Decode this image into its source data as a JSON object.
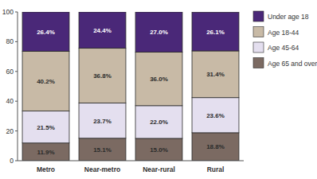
{
  "chart_data": {
    "type": "bar",
    "stacked": true,
    "data_labels": true,
    "legend": "right",
    "grid": false,
    "categories": [
      "Metro",
      "Near-metro",
      "Near-rural",
      "Rural"
    ],
    "ylim": [
      0,
      100
    ],
    "yticks": [
      0,
      20,
      40,
      60,
      80,
      100
    ],
    "series": [
      {
        "name": "Under age 18",
        "color": "#4a2878",
        "values": [
          26.4,
          24.4,
          27.0,
          26.1
        ],
        "value_labels": [
          "26.4%",
          "24.4%",
          "27.0%",
          "26.1%"
        ]
      },
      {
        "name": "Age 18-44",
        "color": "#c8baa6",
        "values": [
          40.2,
          36.8,
          36.0,
          31.4
        ],
        "value_labels": [
          "40.2%",
          "36.8%",
          "36.0%",
          "31.4%"
        ]
      },
      {
        "name": "Age 45-64",
        "color": "#e4dfef",
        "values": [
          21.5,
          23.7,
          22.0,
          23.6
        ],
        "value_labels": [
          "21.5%",
          "23.7%",
          "22.0%",
          "23.6%"
        ]
      },
      {
        "name": "Age 65 and over",
        "color": "#7b6a62",
        "values": [
          11.9,
          15.1,
          15.0,
          18.8
        ],
        "value_labels": [
          "11.9%",
          "15.1%",
          "15.0%",
          "18.8%"
        ]
      }
    ]
  }
}
